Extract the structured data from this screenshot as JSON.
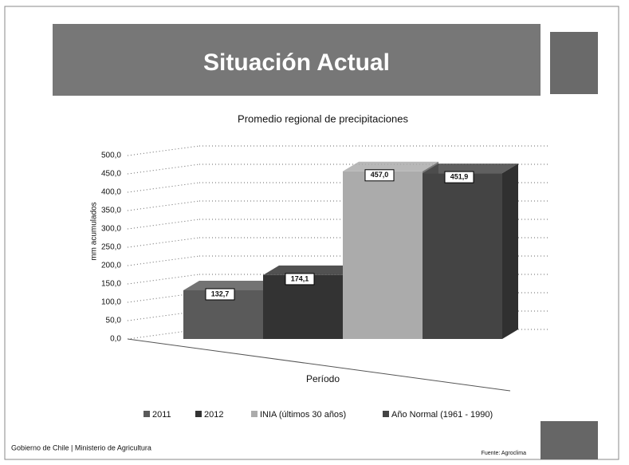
{
  "slide_title": "Situación Actual",
  "footer": "Gobierno de Chile | Ministerio de Agricultura",
  "source": "Fuente: Agroclima",
  "chart_data": {
    "type": "bar",
    "title": "Promedio regional de precipitaciones",
    "y_label": "mm acumulados",
    "x_label": "Período",
    "series": [
      {
        "name": "2011",
        "color": "#5a5a5a",
        "values": [
          132.7
        ],
        "value_labels": [
          "132,7"
        ]
      },
      {
        "name": "2012",
        "color": "#333333",
        "values": [
          174.1
        ],
        "value_labels": [
          "174,1"
        ]
      },
      {
        "name": "INIA (últimos 30 años)",
        "color": "#ababab",
        "values": [
          457.0
        ],
        "value_labels": [
          "457,0"
        ]
      },
      {
        "name": "Año Normal (1961 - 1990)",
        "color": "#444444",
        "values": [
          451.9
        ],
        "value_labels": [
          "451,9"
        ]
      }
    ],
    "ylim": [
      0,
      500
    ],
    "yticks": [
      {
        "value": 0,
        "label": "0,0"
      },
      {
        "value": 50,
        "label": "50,0"
      },
      {
        "value": 100,
        "label": "100,0"
      },
      {
        "value": 150,
        "label": "150,0"
      },
      {
        "value": 200,
        "label": "200,0"
      },
      {
        "value": 250,
        "label": "250,0"
      },
      {
        "value": 300,
        "label": "300,0"
      },
      {
        "value": 350,
        "label": "350,0"
      },
      {
        "value": 400,
        "label": "400,0"
      },
      {
        "value": 450,
        "label": "450,0"
      },
      {
        "value": 500,
        "label": "500,0"
      }
    ],
    "grid": true,
    "legend": "bottom"
  }
}
